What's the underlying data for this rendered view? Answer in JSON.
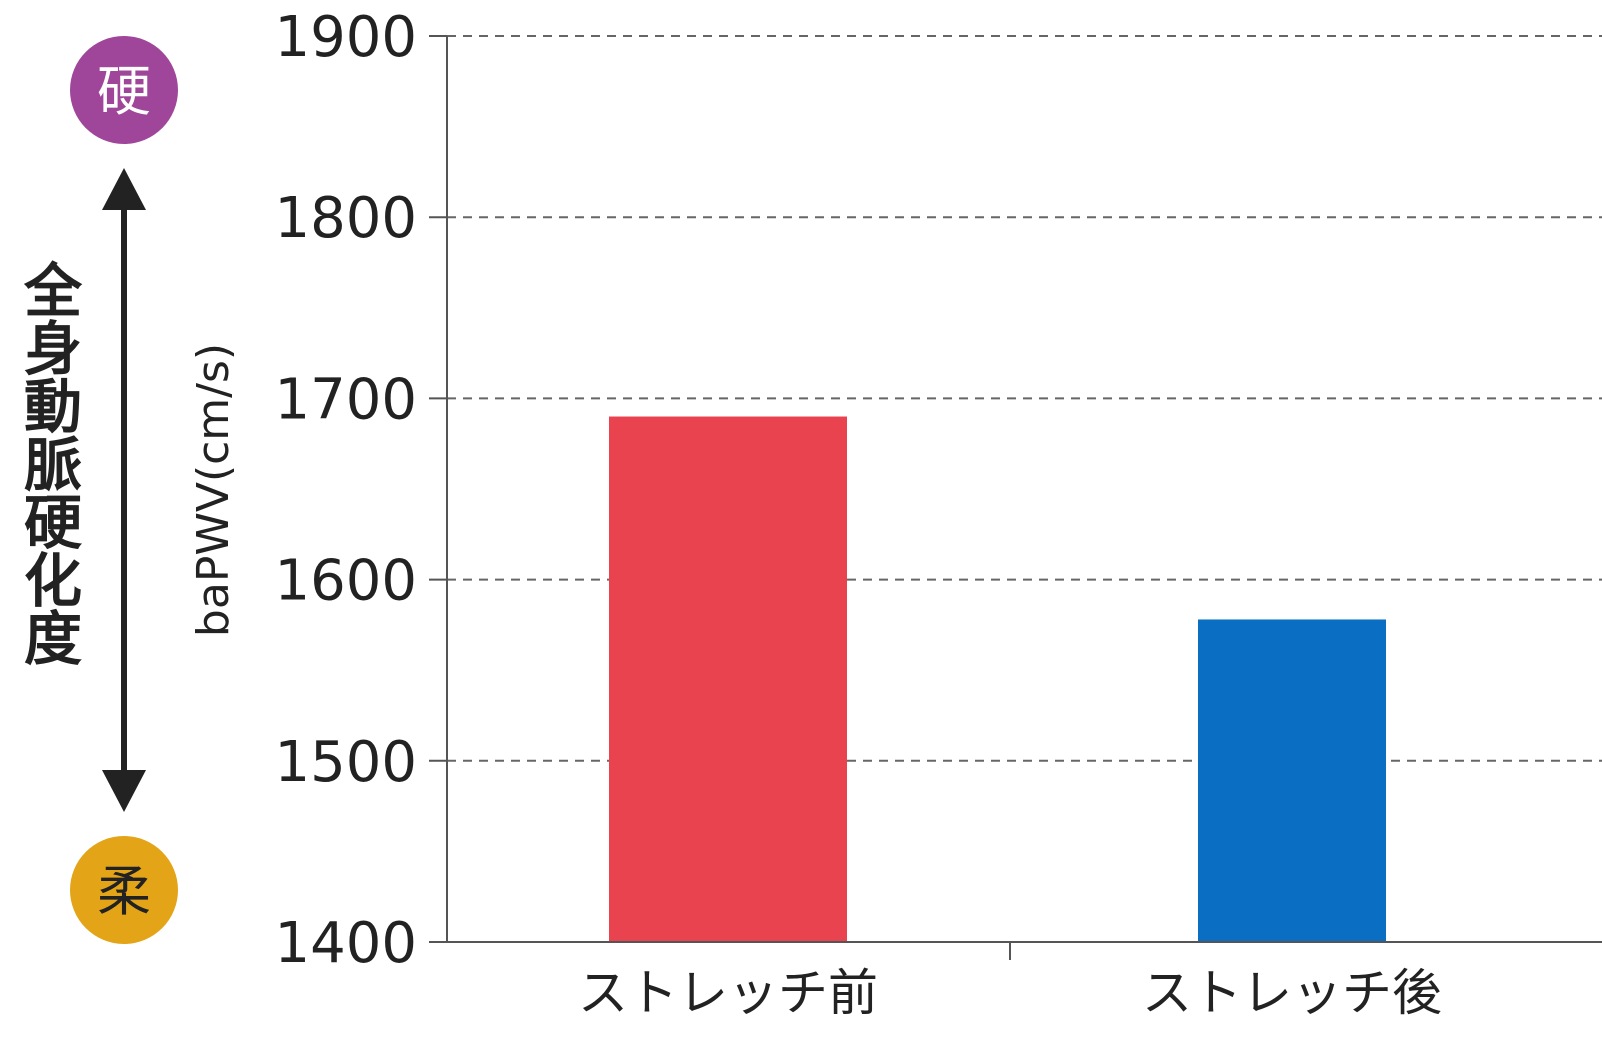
{
  "chart_data": {
    "type": "bar",
    "categories": [
      "ストレッチ前",
      "ストレッチ後"
    ],
    "values": [
      1690,
      1578
    ],
    "colors": [
      "#e8434f",
      "#0a6fc2"
    ],
    "ylabel": "baPWV(cm/s)",
    "ylim": [
      1400,
      1900
    ],
    "yticks": [
      1400,
      1500,
      1600,
      1700,
      1800,
      1900
    ],
    "grid": true,
    "grid_style": "dashed"
  },
  "side_scale": {
    "label": "全身動脈硬化度",
    "top_badge": "硬",
    "bottom_badge": "柔",
    "top_color": "#a0469a",
    "bottom_color": "#e3a417"
  }
}
